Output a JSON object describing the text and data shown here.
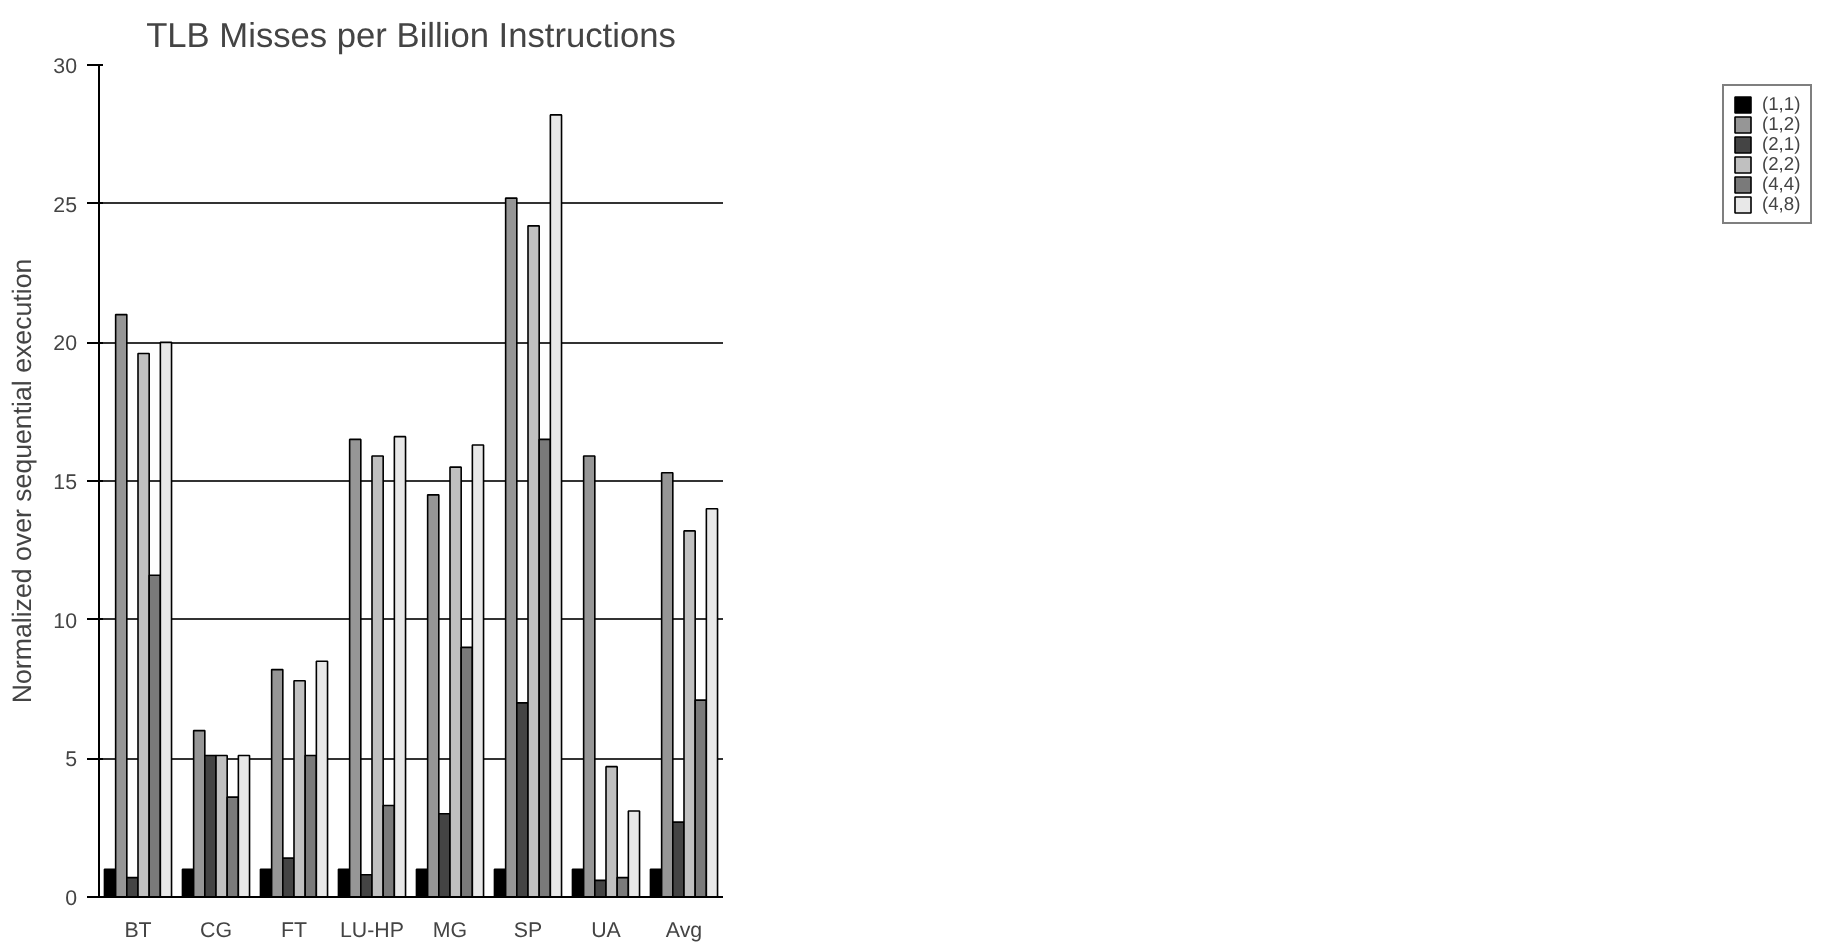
{
  "chart_data": {
    "type": "bar",
    "title": "TLB Misses per Billion Instructions",
    "ylabel": "Normalized over sequential execution",
    "categories": [
      "BT",
      "CG",
      "FT",
      "LU-HP",
      "MG",
      "SP",
      "UA",
      "Avg"
    ],
    "series": [
      {
        "name": "(1,1)",
        "color": "#000000",
        "values": [
          1,
          1,
          1,
          1,
          1,
          1,
          1,
          1
        ]
      },
      {
        "name": "(1,2)",
        "color": "#969696",
        "values": [
          21.0,
          6.0,
          8.2,
          16.5,
          14.5,
          25.2,
          15.9,
          15.3
        ]
      },
      {
        "name": "(2,1)",
        "color": "#444444",
        "values": [
          0.7,
          5.1,
          1.4,
          0.8,
          3.0,
          7.0,
          0.6,
          2.7
        ]
      },
      {
        "name": "(2,2)",
        "color": "#c0c0c0",
        "values": [
          19.6,
          5.1,
          7.8,
          15.9,
          15.5,
          24.2,
          4.7,
          13.2
        ]
      },
      {
        "name": "(4,4)",
        "color": "#7a7a7a",
        "values": [
          11.6,
          3.6,
          5.1,
          3.3,
          9.0,
          16.5,
          0.7,
          7.1
        ]
      },
      {
        "name": "(4,8)",
        "color": "#e8e8e8",
        "values": [
          20.0,
          5.1,
          8.5,
          16.6,
          16.3,
          28.2,
          3.1,
          14.0
        ]
      }
    ],
    "ylim": [
      0,
      30
    ],
    "yticks": [
      0,
      5,
      10,
      15,
      20,
      25,
      30
    ],
    "grid": "y",
    "legend": "right"
  }
}
